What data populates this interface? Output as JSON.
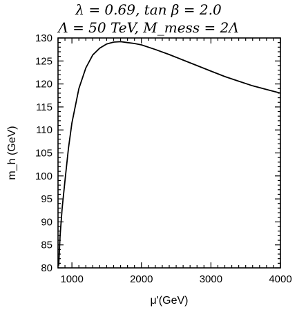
{
  "chart_data": {
    "type": "line",
    "title_line1": "λ = 0.69, tan β = 2.0",
    "title_line2": "Λ = 50 TeV,  M_mess = 2Λ",
    "xlabel": "μ'(GeV)",
    "ylabel": "m_h (GeV)",
    "xlim": [
      800,
      4000
    ],
    "ylim": [
      80,
      130
    ],
    "xticks": [
      1000,
      2000,
      3000,
      4000
    ],
    "yticks": [
      80,
      85,
      90,
      95,
      100,
      105,
      110,
      115,
      120,
      125,
      130
    ],
    "grid": false,
    "series": [
      {
        "color": "#000000",
        "x": [
          810,
          830,
          860,
          900,
          950,
          1000,
          1100,
          1200,
          1300,
          1400,
          1500,
          1600,
          1700,
          1800,
          1900,
          2000,
          2200,
          2400,
          2600,
          2800,
          3000,
          3200,
          3400,
          3600,
          3800,
          4000
        ],
        "y": [
          80.5,
          87,
          93,
          99,
          106,
          111.5,
          119,
          123.5,
          126.3,
          127.8,
          128.7,
          129.1,
          129.2,
          129.0,
          128.8,
          128.5,
          127.5,
          126.4,
          125.2,
          124.0,
          122.8,
          121.6,
          120.6,
          119.6,
          118.8,
          118.0
        ]
      }
    ]
  }
}
